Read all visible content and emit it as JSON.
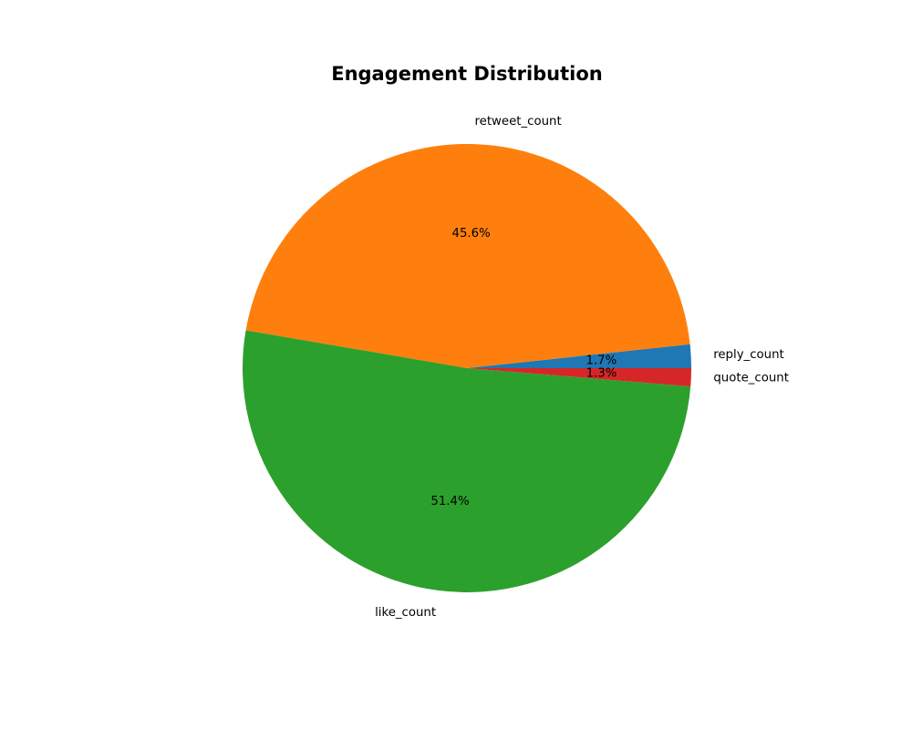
{
  "chart_data": {
    "type": "pie",
    "title": "Engagement Distribution",
    "slices": [
      {
        "label": "reply_count",
        "percent": 1.7,
        "pct_label": "1.7%",
        "color": "#1f77b4"
      },
      {
        "label": "retweet_count",
        "percent": 45.6,
        "pct_label": "45.6%",
        "color": "#ff7f0e"
      },
      {
        "label": "like_count",
        "percent": 51.4,
        "pct_label": "51.4%",
        "color": "#2ca02c"
      },
      {
        "label": "quote_count",
        "percent": 1.3,
        "pct_label": "1.3%",
        "color": "#d62728"
      }
    ],
    "start_angle_deg": 0,
    "direction": "counterclockwise",
    "legend": "none"
  }
}
